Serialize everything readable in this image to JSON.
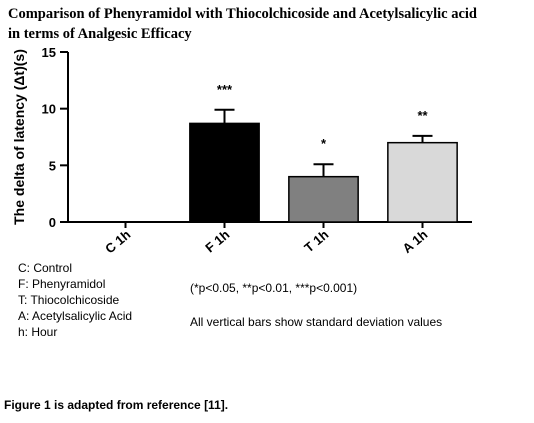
{
  "chart_data": {
    "type": "bar",
    "title_lines": [
      "Comparison of Phenyramidol with Thiocolchicoside and Acetylsalicylic acid",
      "in terms of Analgesic Efficacy"
    ],
    "y_label": "The delta of latency (Δt)(s)",
    "categories": [
      "C 1h",
      "F 1h",
      "T 1h",
      "A 1h"
    ],
    "values": [
      0,
      8.7,
      4.0,
      7.0
    ],
    "errors": [
      0,
      1.2,
      1.1,
      0.6
    ],
    "significance": [
      null,
      "***",
      "*",
      "**"
    ],
    "colors": [
      "#000000",
      "#000000",
      "#808080",
      "#d9d9d9"
    ],
    "ylim": [
      0,
      15
    ],
    "yticks": [
      0,
      5,
      10,
      15
    ],
    "abbreviations": [
      "C: Control",
      "F:  Phenyramidol",
      "T:  Thiocolchicoside",
      "A:  Acetylsalicylic Acid",
      "h:  Hour"
    ],
    "p_note": "(*p<0.05, **p<0.01, ***p<0.001)",
    "error_note": "All vertical bars show standard deviation values",
    "caption": "Figure 1 is adapted from reference [11]."
  }
}
